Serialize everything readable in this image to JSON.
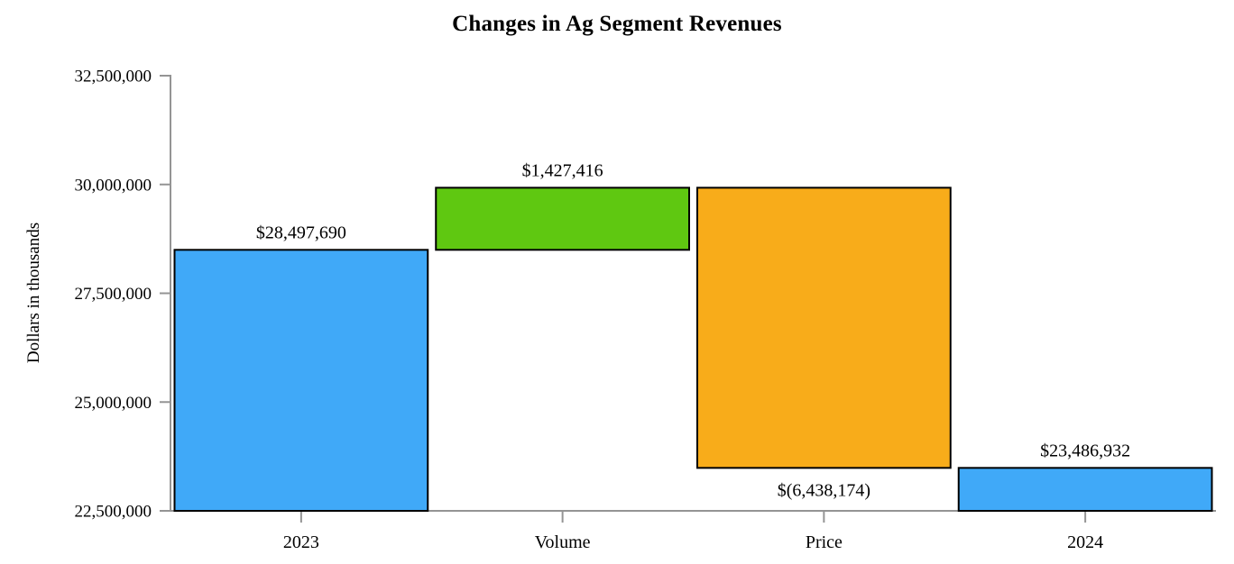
{
  "title": "Changes in Ag Segment Revenues",
  "y_axis_label": "Dollars in thousands",
  "colors": {
    "increase_blue": "#40A9F8",
    "volume_green": "#5FC811",
    "price_orange": "#F8AC1A",
    "bar_border": "#000000",
    "axis_gray": "#949494",
    "text_black": "#000000"
  },
  "chart_data": {
    "type": "bar",
    "subtype": "waterfall",
    "title": "Changes in Ag Segment Revenues",
    "xlabel": "",
    "ylabel": "Dollars in thousands",
    "ylim": [
      22500000,
      32500000
    ],
    "ytick_interval": 2500000,
    "yticks": [
      {
        "value": 22500000,
        "label": "22,500,000"
      },
      {
        "value": 25000000,
        "label": "25,000,000"
      },
      {
        "value": 27500000,
        "label": "27,500,000"
      },
      {
        "value": 30000000,
        "label": "30,000,000"
      },
      {
        "value": 32500000,
        "label": "32,500,000"
      }
    ],
    "categories": [
      "2023",
      "Volume",
      "Price",
      "2024"
    ],
    "grid": false,
    "legend": false,
    "bars": [
      {
        "category": "2023",
        "start": 22500000,
        "end": 28497690,
        "value": 28497690,
        "label": "$28,497,690",
        "label_position": "above",
        "color": "#40A9F8"
      },
      {
        "category": "Volume",
        "start": 28497690,
        "end": 29925106,
        "value": 1427416,
        "label": "$1,427,416",
        "label_position": "above",
        "color": "#5FC811"
      },
      {
        "category": "Price",
        "start": 29925106,
        "end": 23486932,
        "value": -6438174,
        "label": "$(6,438,174)",
        "label_position": "below",
        "color": "#F8AC1A"
      },
      {
        "category": "2024",
        "start": 22500000,
        "end": 23486932,
        "value": 23486932,
        "label": "$23,486,932",
        "label_position": "above",
        "color": "#40A9F8"
      }
    ]
  }
}
